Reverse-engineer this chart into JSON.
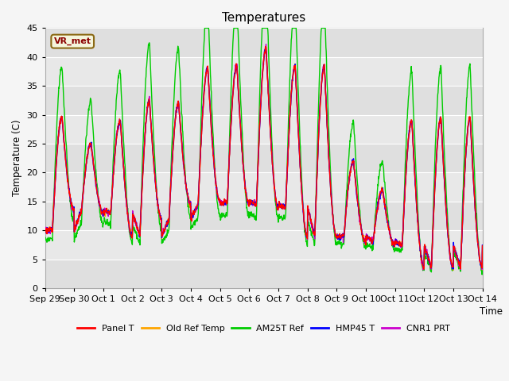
{
  "title": "Temperatures",
  "ylabel": "Temperature (C)",
  "xlabel": "Time",
  "annotation": "VR_met",
  "ylim": [
    0,
    45
  ],
  "series_colors": {
    "Panel T": "#ff0000",
    "Old Ref Temp": "#ffa500",
    "AM25T Ref": "#00cc00",
    "HMP45 T": "#0000ff",
    "CNR1 PRT": "#cc00cc"
  },
  "x_tick_labels": [
    "Sep 29",
    "Sep 30",
    "Oct 1",
    "Oct 2",
    "Oct 3",
    "Oct 4",
    "Oct 5",
    "Oct 6",
    "Oct 7",
    "Oct 8",
    "Oct 9",
    "Oct 10",
    "Oct 11",
    "Oct 12",
    "Oct 13",
    "Oct 14"
  ],
  "plot_bg_alternating": [
    "#e8e8e8",
    "#d8d8d8"
  ],
  "grid_color": "#ffffff",
  "n_points": 1440,
  "day_peaks": [
    29.5,
    25.0,
    29.0,
    32.5,
    32.0,
    38.0,
    38.5,
    41.5,
    38.5,
    38.5,
    22.0,
    17.0,
    29.0,
    29.5
  ],
  "day_mins": [
    10.0,
    13.5,
    13.0,
    9.0,
    12.0,
    14.5,
    15.0,
    14.5,
    14.0,
    9.0,
    9.0,
    8.0,
    7.5,
    3.5
  ],
  "am25t_peak_factor": 1.3,
  "am25t_min_factor": 0.85
}
